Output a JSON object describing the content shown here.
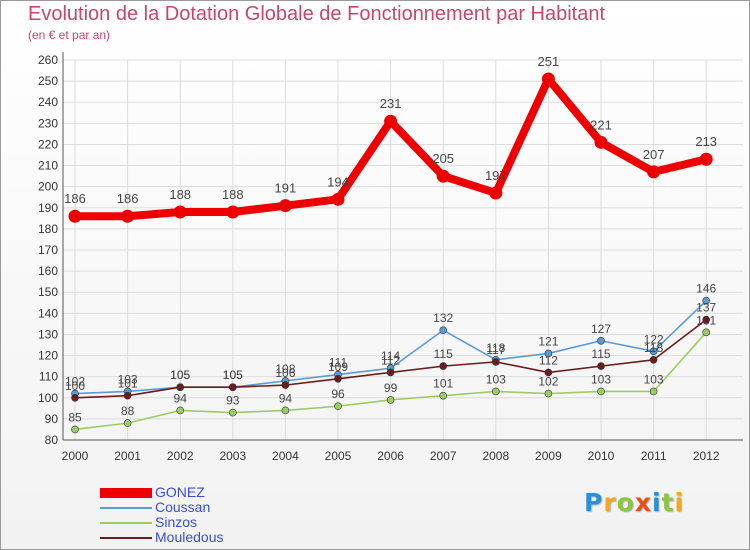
{
  "chart_data": {
    "type": "line",
    "title": "Evolution de la Dotation Globale de Fonctionnement par Habitant",
    "subtitle": "(en € et par an)",
    "xlabel": "",
    "ylabel": "",
    "x": [
      "2000",
      "2001",
      "2002",
      "2003",
      "2004",
      "2005",
      "2006",
      "2007",
      "2008",
      "2009",
      "2010",
      "2011",
      "2012"
    ],
    "ylim": [
      80,
      260
    ],
    "ytick_step": 10,
    "grid": true,
    "legend_position": "bottom-left",
    "series": [
      {
        "name": "GONEZ",
        "color": "#ee0000",
        "values": [
          186,
          186,
          188,
          188,
          191,
          194,
          231,
          205,
          197,
          251,
          221,
          207,
          213
        ]
      },
      {
        "name": "Coussan",
        "color": "#5b9bd5",
        "values": [
          102,
          103,
          105,
          105,
          108,
          111,
          114,
          132,
          118,
          121,
          127,
          122,
          146
        ]
      },
      {
        "name": "Sinzos",
        "color": "#9ccc65",
        "values": [
          85,
          88,
          94,
          93,
          94,
          96,
          99,
          101,
          103,
          102,
          103,
          103,
          131
        ]
      },
      {
        "name": "Mouledous",
        "color": "#6b1c1c",
        "values": [
          100,
          101,
          105,
          105,
          106,
          109,
          112,
          115,
          117,
          112,
          115,
          118,
          137
        ]
      }
    ]
  },
  "legend": {
    "items": [
      {
        "label": "GONEZ"
      },
      {
        "label": "Coussan"
      },
      {
        "label": "Sinzos"
      },
      {
        "label": "Mouledous"
      }
    ]
  },
  "brand": {
    "letters": [
      "P",
      "r",
      "o",
      "x",
      "i",
      "t",
      "i"
    ],
    "colors": [
      "#2a8fd8",
      "#f5a623",
      "#8cc63f",
      "#e94e1b",
      "#2a8fd8",
      "#8cc63f",
      "#f5a623"
    ]
  }
}
